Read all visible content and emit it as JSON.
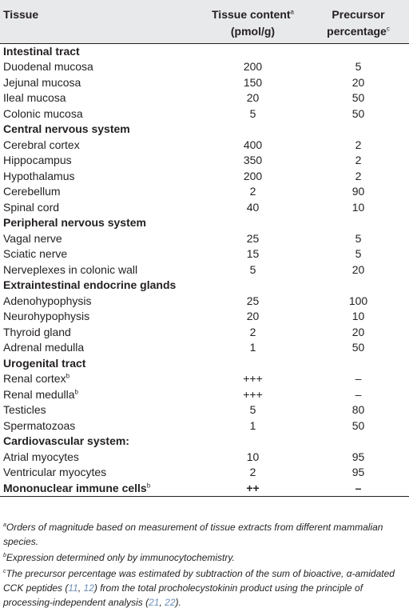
{
  "headers": {
    "tissue": "Tissue",
    "content": "Tissue content",
    "content_sup": "a",
    "content_unit": "(pmol/g)",
    "precursor": "Precursor",
    "precursor_2": "percentage",
    "precursor_sup": "c"
  },
  "rows": [
    {
      "kind": "section",
      "tissue": "Intestinal tract",
      "content": "",
      "precursor": ""
    },
    {
      "kind": "row",
      "tissue": "Duodenal mucosa",
      "content": "200",
      "precursor": "5"
    },
    {
      "kind": "row",
      "tissue": "Jejunal mucosa",
      "content": "150",
      "precursor": "20"
    },
    {
      "kind": "row",
      "tissue": "Ileal mucosa",
      "content": "20",
      "precursor": "50"
    },
    {
      "kind": "row",
      "tissue": "Colonic mucosa",
      "content": "5",
      "precursor": "50"
    },
    {
      "kind": "section",
      "tissue": "Central nervous system",
      "content": "",
      "precursor": ""
    },
    {
      "kind": "row",
      "tissue": "Cerebral cortex",
      "content": "400",
      "precursor": "2"
    },
    {
      "kind": "row",
      "tissue": "Hippocampus",
      "content": "350",
      "precursor": "2"
    },
    {
      "kind": "row",
      "tissue": "Hypothalamus",
      "content": "200",
      "precursor": "2"
    },
    {
      "kind": "row",
      "tissue": "Cerebellum",
      "content": "2",
      "precursor": "90"
    },
    {
      "kind": "row",
      "tissue": "Spinal cord",
      "content": "40",
      "precursor": "10"
    },
    {
      "kind": "section",
      "tissue": "Peripheral nervous system",
      "content": "",
      "precursor": ""
    },
    {
      "kind": "row",
      "tissue": "Vagal nerve",
      "content": "25",
      "precursor": "5"
    },
    {
      "kind": "row",
      "tissue": "Sciatic nerve",
      "content": "15",
      "precursor": "5"
    },
    {
      "kind": "row",
      "tissue": "Nerveplexes in colonic wall",
      "content": "5",
      "precursor": "20"
    },
    {
      "kind": "section",
      "tissue": "Extraintestinal endocrine glands",
      "content": "",
      "precursor": ""
    },
    {
      "kind": "row",
      "tissue": "Adenohypophysis",
      "content": "25",
      "precursor": "100"
    },
    {
      "kind": "row",
      "tissue": "Neurohypophysis",
      "content": "20",
      "precursor": "10"
    },
    {
      "kind": "row",
      "tissue": "Thyroid gland",
      "content": "2",
      "precursor": "20"
    },
    {
      "kind": "row",
      "tissue": "Adrenal medulla",
      "content": "1",
      "precursor": "50"
    },
    {
      "kind": "section",
      "tissue": "Urogenital tract",
      "content": "",
      "precursor": ""
    },
    {
      "kind": "row",
      "tissue": "Renal cortex",
      "sup": "b",
      "content": "+++",
      "precursor": "–"
    },
    {
      "kind": "row",
      "tissue": "Renal medulla",
      "sup": "b",
      "content": "+++",
      "precursor": "–"
    },
    {
      "kind": "row",
      "tissue": "Testicles",
      "content": "5",
      "precursor": "80"
    },
    {
      "kind": "row",
      "tissue": "Spermatozoas",
      "content": "1",
      "precursor": "50"
    },
    {
      "kind": "section",
      "tissue": "Cardiovascular system:",
      "content": "",
      "precursor": ""
    },
    {
      "kind": "row",
      "tissue": "Atrial myocytes",
      "content": "10",
      "precursor": "95"
    },
    {
      "kind": "row",
      "tissue": "Ventricular myocytes",
      "content": "2",
      "precursor": "95"
    },
    {
      "kind": "section",
      "tissue": "Mononuclear immune cells",
      "sup": "b",
      "content": "++",
      "precursor": "–"
    }
  ],
  "footnotes": {
    "a_mark": "a",
    "a_text": "Orders of magnitude based on measurement of tissue extracts from different mammalian species.",
    "b_mark": "b",
    "b_text": "Expression determined only by immunocytochemistry.",
    "c_mark": "c",
    "c_text_1": "The precursor percentage was estimated by subtraction of the sum of bioactive, α-amidated CCK peptides (",
    "c_ref_1": "11",
    "c_sep_1": ", ",
    "c_ref_2": "12",
    "c_text_2": ") from the total procholecystokinin product using the principle of processing-independent analysis (",
    "c_ref_3": "21",
    "c_sep_2": ", ",
    "c_ref_4": "22",
    "c_text_3": ")."
  }
}
